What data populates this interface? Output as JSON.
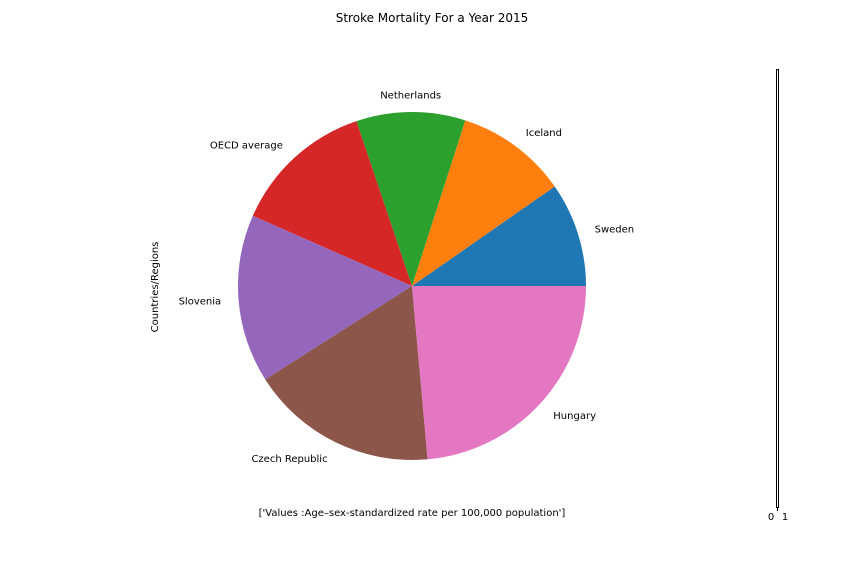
{
  "chart_data": {
    "type": "pie",
    "title": "Stroke Mortality For a Year 2015",
    "ylabel": "Countries/Regions",
    "xlabel": "['Values :Age–sex-standardized rate per 100,000 population']",
    "categories": [
      "Sweden",
      "Iceland",
      "Netherlands",
      "OECD average",
      "Slovenia",
      "Czech Republic",
      "Hungary"
    ],
    "values": [
      44,
      47,
      46,
      60,
      71,
      79,
      107
    ],
    "colors": [
      "#1f77b4",
      "#ff7f0e",
      "#2ca02c",
      "#d62728",
      "#9467bd",
      "#8c564b",
      "#e377c2"
    ],
    "start_angle": 0,
    "direction": "counterclockwise",
    "side_axis_ticks": [
      "0",
      "1"
    ]
  }
}
